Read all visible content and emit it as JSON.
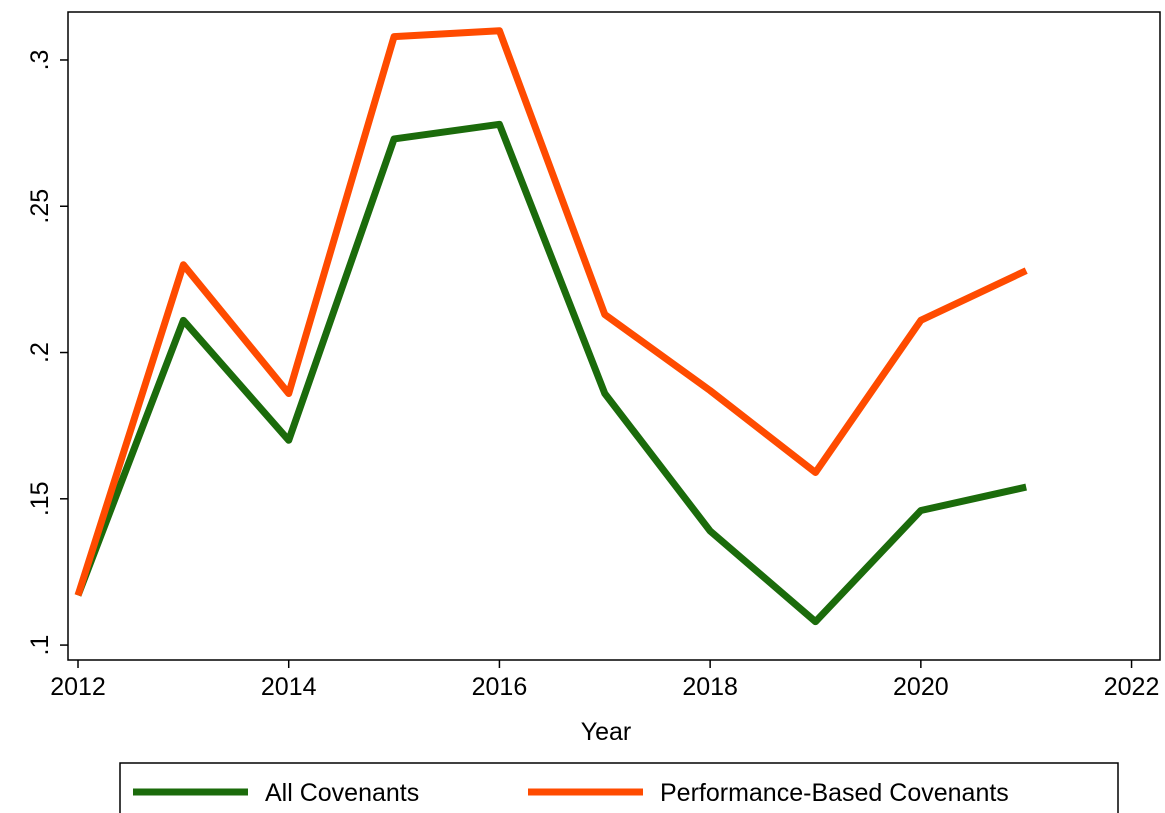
{
  "chart_data": {
    "type": "line",
    "x_label": "Year",
    "x": [
      2012,
      2013,
      2014,
      2015,
      2016,
      2017,
      2018,
      2019,
      2020,
      2021
    ],
    "series": [
      {
        "name": "All Covenants",
        "color": "#1b6b0b",
        "values": [
          0.117,
          0.211,
          0.17,
          0.273,
          0.278,
          0.186,
          0.139,
          0.108,
          0.146,
          0.154
        ]
      },
      {
        "name": "Performance-Based Covenants",
        "color": "#ff4b00",
        "values": [
          0.117,
          0.23,
          0.186,
          0.308,
          0.31,
          0.213,
          0.187,
          0.159,
          0.211,
          0.228
        ]
      }
    ],
    "xlim": [
      2011.905,
      2022.27
    ],
    "xticks": [
      2012,
      2014,
      2016,
      2018,
      2020,
      2022
    ],
    "ylim": [
      0.0949,
      0.3164
    ],
    "yticks": [
      {
        "value": 0.1,
        "label": ".1"
      },
      {
        "value": 0.15,
        "label": ".15"
      },
      {
        "value": 0.2,
        "label": ".2"
      },
      {
        "value": 0.25,
        "label": ".25"
      },
      {
        "value": 0.3,
        "label": ".3"
      }
    ],
    "legend": "bottom"
  }
}
